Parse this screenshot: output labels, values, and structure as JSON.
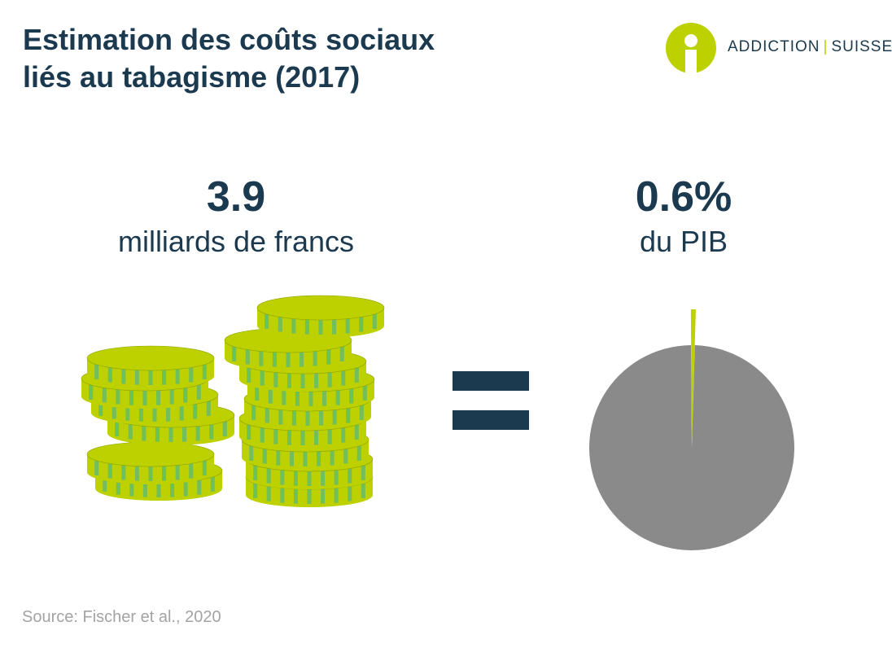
{
  "title": {
    "line1": "Estimation des coûts sociaux",
    "line2": "liés au tabagisme (2017)"
  },
  "logo": {
    "part1": "ADDICTION",
    "separator": "|",
    "part2": "SUISSE",
    "icon": "addiction-suisse-logo-icon",
    "color": "#bdd000"
  },
  "left_stat": {
    "value": "3.9",
    "label": "milliards de francs",
    "icon": "coin-stacks-icon"
  },
  "equals_icon": "equals-icon",
  "right_stat": {
    "value": "0.6%",
    "label": "du PIB"
  },
  "chart_data": {
    "type": "pie",
    "slices": [
      {
        "value": 0.6,
        "color": "#bdd000",
        "exploded": true
      },
      {
        "value": 99.4,
        "color": "#8a8a8a"
      }
    ]
  },
  "colors": {
    "primary": "#1b3a4f",
    "accent": "#bdd000",
    "pie_rest": "#8a8a8a",
    "source": "#a3a3a3"
  },
  "source": "Source: Fischer et al., 2020"
}
